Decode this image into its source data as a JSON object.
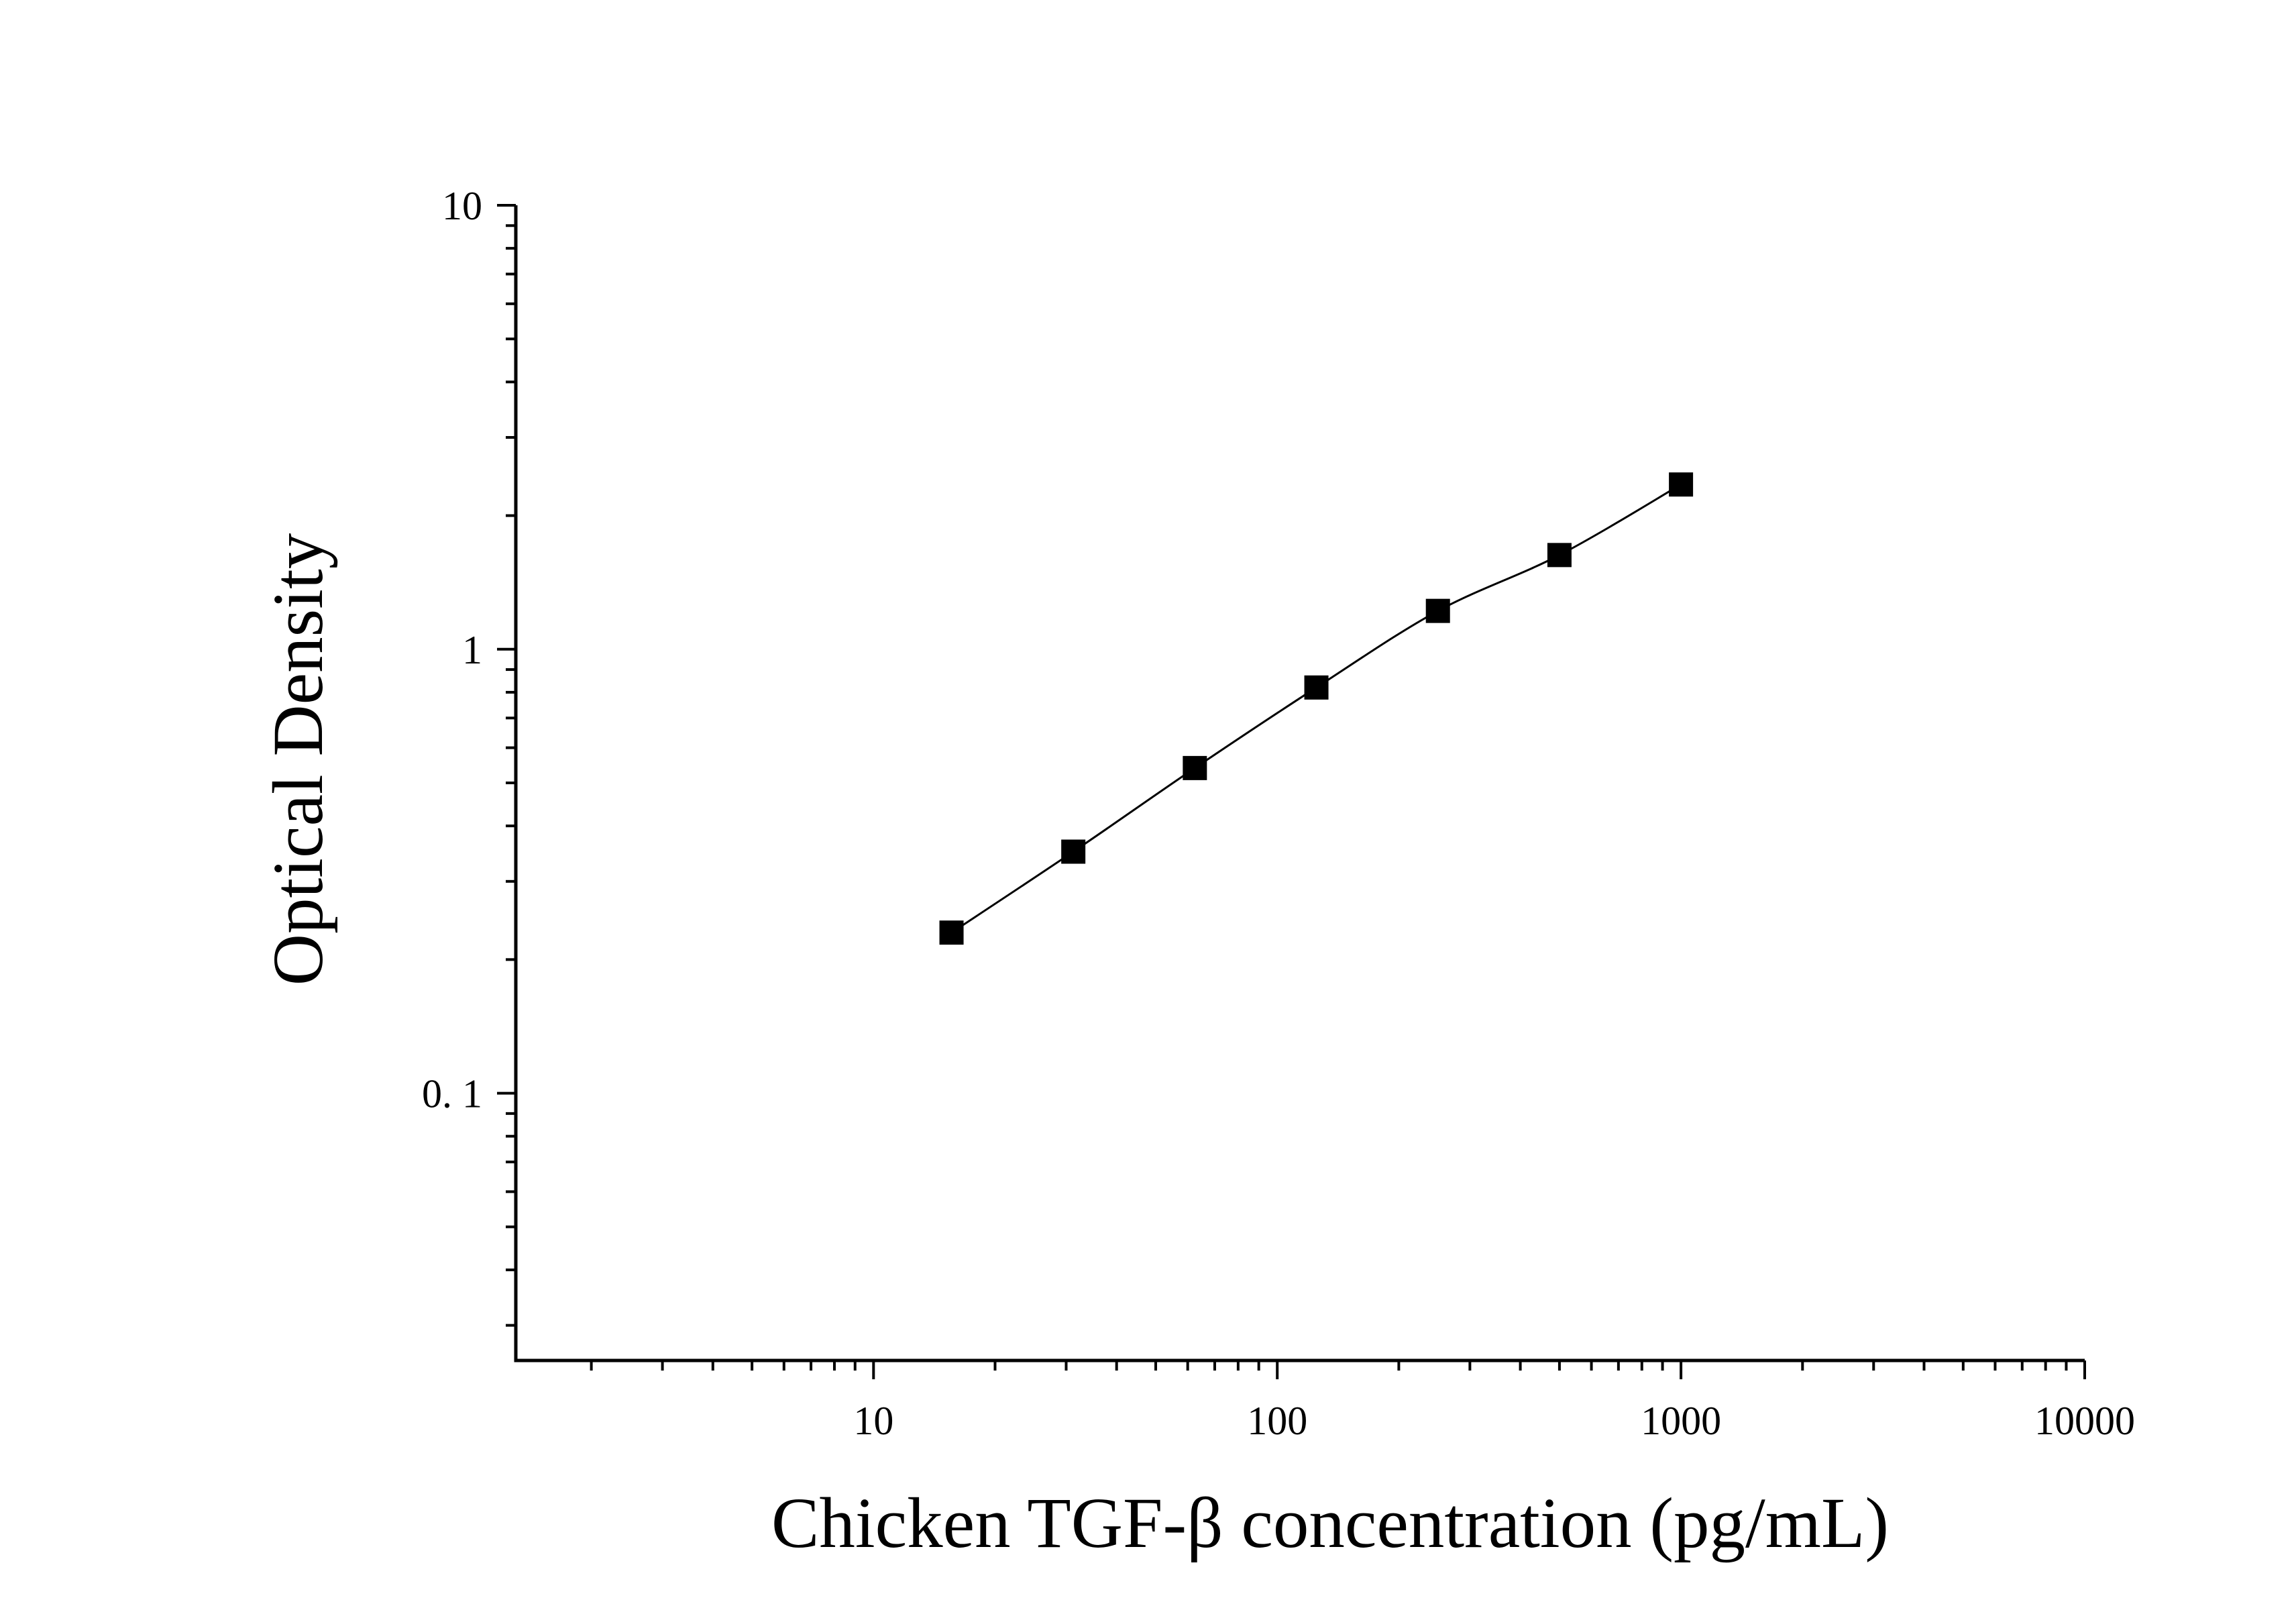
{
  "chart_data": {
    "type": "scatter",
    "title": "",
    "xlabel": "Chicken TGF-β concentration (pg/mL)",
    "ylabel": "Optical Density",
    "x_scale": "log",
    "y_scale": "log",
    "xlim": [
      1.3,
      10000
    ],
    "ylim": [
      0.025,
      10
    ],
    "x_tick_labels": [
      {
        "value": 10,
        "label": "10"
      },
      {
        "value": 100,
        "label": "100"
      },
      {
        "value": 1000,
        "label": "1000"
      },
      {
        "value": 10000,
        "label": "10000"
      }
    ],
    "y_tick_labels": [
      {
        "value": 0.1,
        "label": "0. 1"
      },
      {
        "value": 1,
        "label": "1"
      },
      {
        "value": 10,
        "label": "10"
      }
    ],
    "grid": false,
    "legend": "none",
    "marker": "square",
    "marker_color": "#000000",
    "line_color": "#000000",
    "series": [
      {
        "x": [
          15.6,
          31.25,
          62.5,
          125,
          250,
          500,
          1000
        ],
        "y": [
          0.23,
          0.35,
          0.54,
          0.82,
          1.22,
          1.63,
          2.35
        ]
      }
    ]
  }
}
